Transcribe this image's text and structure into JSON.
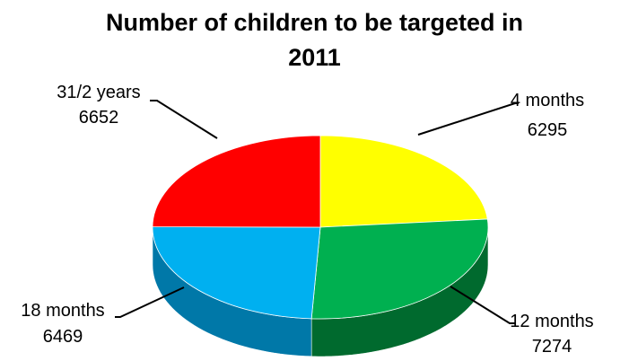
{
  "chart_data": {
    "type": "pie",
    "title_lines": [
      "Number of children to be targeted in",
      "2011"
    ],
    "slices": [
      {
        "label": "4 months",
        "value": 6295,
        "color": "#ffff00",
        "side": "#c8c800"
      },
      {
        "label": "12 months",
        "value": 7274,
        "color": "#00b050",
        "side": "#006a2e"
      },
      {
        "label": "18 months",
        "value": 6469,
        "color": "#00b0f0",
        "side": "#0078a8"
      },
      {
        "label": "31/2 years",
        "value": 6652,
        "color": "#ff0000",
        "side": "#b00000"
      }
    ],
    "legend": "none",
    "data_labels": "outside with leader lines"
  }
}
